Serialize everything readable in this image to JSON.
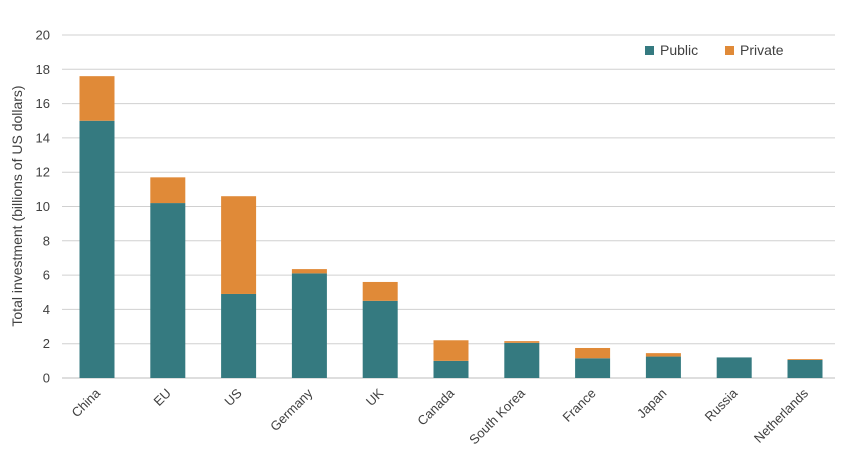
{
  "chart_data": {
    "type": "bar",
    "stacked": true,
    "categories": [
      "China",
      "EU",
      "US",
      "Germany",
      "UK",
      "Canada",
      "South Korea",
      "France",
      "Japan",
      "Russia",
      "Netherlands"
    ],
    "series": [
      {
        "name": "Public",
        "color": "#357a80",
        "values": [
          15.0,
          10.2,
          4.9,
          6.1,
          4.5,
          1.0,
          2.05,
          1.15,
          1.25,
          1.2,
          1.05
        ]
      },
      {
        "name": "Private",
        "color": "#e08a38",
        "values": [
          2.6,
          1.5,
          5.7,
          0.25,
          1.1,
          1.2,
          0.1,
          0.6,
          0.2,
          0.0,
          0.05
        ]
      }
    ],
    "ylabel": "Total investment (billions of US dollars)",
    "xlabel": "",
    "ylim": [
      0,
      20
    ],
    "yticks": [
      0,
      2,
      4,
      6,
      8,
      10,
      12,
      14,
      16,
      18,
      20
    ],
    "grid": true,
    "legend_position": "top-right"
  }
}
